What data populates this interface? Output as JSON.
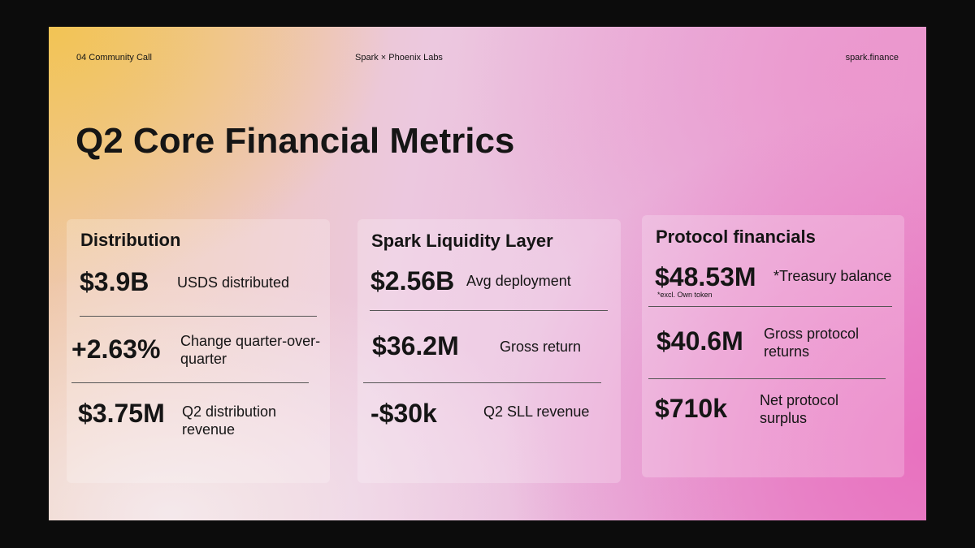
{
  "header": {
    "left": "04 Community Call",
    "center": "Spark × Phoenix Labs",
    "right": "spark.finance"
  },
  "title": "Q2 Core Financial Metrics",
  "cards": [
    {
      "title": "Distribution",
      "metrics": [
        {
          "value": "$3.9B",
          "label": "USDS distributed"
        },
        {
          "value": "+2.63%",
          "label": "Change quarter-over-quarter"
        },
        {
          "value": "$3.75M",
          "label": "Q2 distribution revenue"
        }
      ]
    },
    {
      "title": "Spark Liquidity Layer",
      "metrics": [
        {
          "value": "$2.56B",
          "label": "Avg deployment"
        },
        {
          "value": "$36.2M",
          "label": "Gross return"
        },
        {
          "value": "-$30k",
          "label": "Q2 SLL revenue"
        }
      ]
    },
    {
      "title": "Protocol financials",
      "metrics": [
        {
          "value": "$48.53M",
          "label": "*Treasury balance",
          "note": "*excl. Own token"
        },
        {
          "value": "$40.6M",
          "label": "Gross protocol returns"
        },
        {
          "value": "$710k",
          "label": "Net protocol surplus"
        }
      ]
    }
  ]
}
